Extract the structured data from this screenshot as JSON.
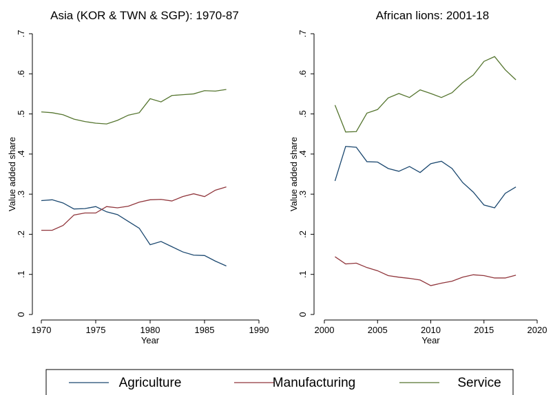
{
  "chart_data": [
    {
      "type": "line",
      "title": "Asia (KOR & TWN & SGP): 1970-87",
      "xlabel": "Year",
      "ylabel": "Value added share",
      "x": [
        1970,
        1971,
        1972,
        1973,
        1974,
        1975,
        1976,
        1977,
        1978,
        1979,
        1980,
        1981,
        1982,
        1983,
        1984,
        1985,
        1986,
        1987
      ],
      "xlim": [
        1970,
        1990
      ],
      "xticks": [
        1970,
        1975,
        1980,
        1985,
        1990
      ],
      "ylim": [
        0,
        0.7
      ],
      "yticks": [
        0,
        {
          "value": 0.1,
          "label": ".1"
        },
        {
          "value": 0.2,
          "label": ".2"
        },
        {
          "value": 0.3,
          "label": ".3"
        },
        {
          "value": 0.4,
          "label": ".4"
        },
        {
          "value": 0.5,
          "label": ".5"
        },
        {
          "value": 0.6,
          "label": ".6"
        },
        {
          "value": 0.7,
          "label": ".7"
        }
      ],
      "series": [
        {
          "name": "Agriculture",
          "color": "#1a476f",
          "values": [
            0.284,
            0.286,
            0.278,
            0.263,
            0.264,
            0.269,
            0.256,
            0.249,
            0.232,
            0.215,
            0.174,
            0.182,
            0.169,
            0.156,
            0.148,
            0.147,
            0.133,
            0.121
          ]
        },
        {
          "name": "Manufacturing",
          "color": "#90353b",
          "values": [
            0.21,
            0.21,
            0.222,
            0.248,
            0.253,
            0.253,
            0.269,
            0.266,
            0.27,
            0.28,
            0.286,
            0.287,
            0.283,
            0.294,
            0.301,
            0.294,
            0.31,
            0.318
          ]
        },
        {
          "name": "Service",
          "color": "#55752f",
          "values": [
            0.505,
            0.503,
            0.498,
            0.487,
            0.481,
            0.477,
            0.475,
            0.484,
            0.497,
            0.503,
            0.538,
            0.53,
            0.546,
            0.548,
            0.55,
            0.558,
            0.557,
            0.561
          ]
        }
      ]
    },
    {
      "type": "line",
      "title": "African lions: 2001-18",
      "xlabel": "Year",
      "ylabel": "Value added share",
      "x": [
        2001,
        2002,
        2003,
        2004,
        2005,
        2006,
        2007,
        2008,
        2009,
        2010,
        2011,
        2012,
        2013,
        2014,
        2015,
        2016,
        2017,
        2018
      ],
      "xlim": [
        2000,
        2020
      ],
      "xticks": [
        2000,
        2005,
        2010,
        2015,
        2020
      ],
      "ylim": [
        0,
        0.7
      ],
      "yticks": [
        0,
        {
          "value": 0.1,
          "label": ".1"
        },
        {
          "value": 0.2,
          "label": ".2"
        },
        {
          "value": 0.3,
          "label": ".3"
        },
        {
          "value": 0.4,
          "label": ".4"
        },
        {
          "value": 0.5,
          "label": ".5"
        },
        {
          "value": 0.6,
          "label": ".6"
        },
        {
          "value": 0.7,
          "label": ".7"
        }
      ],
      "series": [
        {
          "color": "#1a476f",
          "values": [
            0.333,
            0.419,
            0.417,
            0.381,
            0.38,
            0.364,
            0.357,
            0.369,
            0.354,
            0.376,
            0.382,
            0.364,
            0.329,
            0.305,
            0.273,
            0.266,
            0.302,
            0.318
          ]
        },
        {
          "color": "#90353b",
          "values": [
            0.144,
            0.126,
            0.128,
            0.117,
            0.109,
            0.097,
            0.093,
            0.09,
            0.086,
            0.072,
            0.078,
            0.083,
            0.093,
            0.099,
            0.097,
            0.091,
            0.091,
            0.098
          ]
        },
        {
          "color": "#55752f",
          "values": [
            0.522,
            0.455,
            0.456,
            0.502,
            0.511,
            0.54,
            0.551,
            0.541,
            0.56,
            0.551,
            0.541,
            0.553,
            0.578,
            0.597,
            0.631,
            0.643,
            0.61,
            0.585
          ]
        }
      ]
    }
  ]
}
